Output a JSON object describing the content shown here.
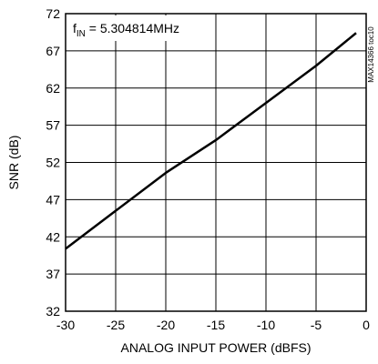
{
  "chart_data": {
    "type": "line",
    "title": "",
    "xlabel": "ANALOG INPUT POWER (dBFS)",
    "ylabel": "SNR (dB)",
    "xlim": [
      -30,
      0
    ],
    "ylim": [
      32,
      72
    ],
    "xticks": [
      -30,
      -25,
      -20,
      -15,
      -10,
      -5,
      0
    ],
    "yticks": [
      32,
      37,
      42,
      47,
      52,
      57,
      62,
      67,
      72
    ],
    "grid": true,
    "annotation": {
      "prefix": "f",
      "subscript": "IN",
      "text": " = 5.304814MHz"
    },
    "side_label": "MAX14366 toc10",
    "series": [
      {
        "x": [
          -30,
          -25,
          -20,
          -15,
          -10,
          -5,
          -1
        ],
        "y": [
          40.4,
          45.5,
          50.6,
          55.0,
          60.0,
          65.0,
          69.4
        ]
      }
    ]
  }
}
